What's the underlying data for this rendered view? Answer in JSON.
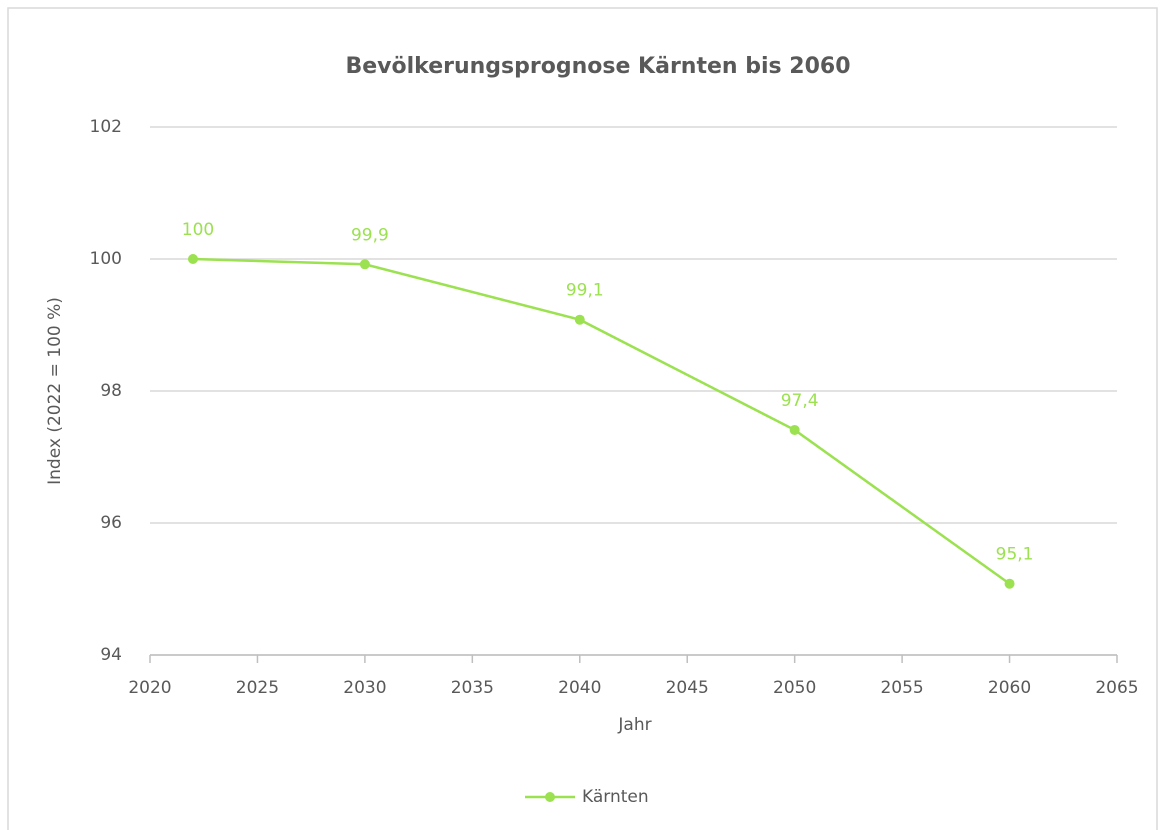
{
  "chart_data": {
    "type": "line",
    "title": "Bevölkerungsprognose Kärnten bis 2060",
    "x_label": "Jahr",
    "y_label": "Index (2022 = 100 %)",
    "x": [
      2022,
      2030,
      2040,
      2050,
      2060
    ],
    "series": [
      {
        "name": "Kärnten",
        "color": "#9be150",
        "values": [
          100,
          99.92,
          99.08,
          97.41,
          95.08
        ],
        "value_labels": [
          "100",
          "99,9",
          "99,1",
          "97,4",
          "95,1"
        ]
      }
    ],
    "xlim": [
      2020,
      2065
    ],
    "xticks": [
      2020,
      2025,
      2030,
      2035,
      2040,
      2045,
      2050,
      2055,
      2060,
      2065
    ],
    "ylim": [
      94,
      102
    ],
    "yticks": [
      94,
      96,
      98,
      100,
      102
    ],
    "grid": true,
    "legend": "bottom"
  }
}
